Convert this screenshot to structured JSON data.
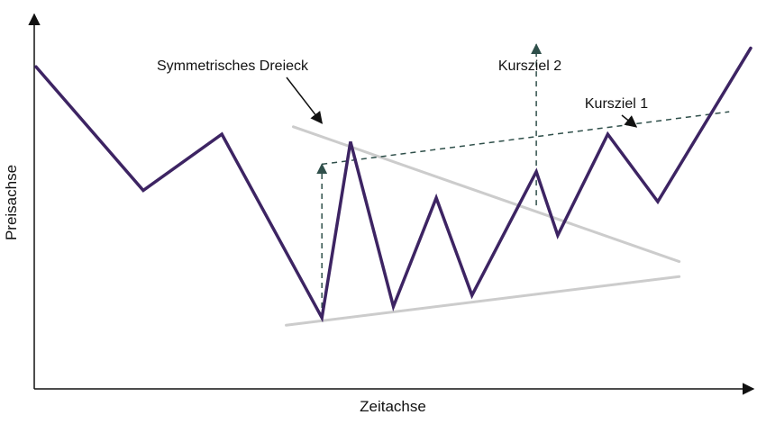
{
  "chart_data": {
    "type": "line",
    "xlabel": "Zeitachse",
    "ylabel": "Preisachse",
    "grid": false,
    "legend": "none",
    "colors": {
      "price_line": "#3d2463",
      "triangle_lines": "#cccccc",
      "target_lines": "#2f4f4a",
      "axis": "#111111",
      "annotation_arrow": "#111111"
    },
    "series": [
      {
        "points": [
          [
            0,
            86
          ],
          [
            15,
            53
          ],
          [
            26,
            68
          ],
          [
            40,
            19
          ],
          [
            44,
            66
          ],
          [
            50,
            22
          ],
          [
            56,
            51
          ],
          [
            61,
            25
          ],
          [
            70,
            58
          ],
          [
            73,
            41
          ],
          [
            80,
            68
          ],
          [
            87,
            50
          ],
          [
            100,
            91
          ]
        ]
      }
    ],
    "triangle": {
      "upper": [
        [
          36,
          70
        ],
        [
          90,
          34
        ]
      ],
      "lower": [
        [
          35,
          17
        ],
        [
          90,
          30
        ]
      ]
    },
    "target_lines": {
      "ziel2_projection": [
        [
          40,
          19
        ],
        [
          40,
          60
        ]
      ],
      "breakout_rise": [
        [
          70,
          49
        ],
        [
          70,
          92
        ]
      ],
      "channel_dashed": [
        [
          40,
          60
        ],
        [
          97,
          74
        ]
      ]
    },
    "annotations": [
      {
        "id": "symmetrisches_dreieck",
        "text": "Symmetrisches Dreieck",
        "target": [
          40,
          70
        ]
      },
      {
        "id": "kursziel_2",
        "text": "Kursziel 2",
        "target": [
          70,
          92
        ]
      },
      {
        "id": "kursziel_1",
        "text": "Kursziel 1",
        "target": [
          84,
          69
        ]
      }
    ]
  }
}
